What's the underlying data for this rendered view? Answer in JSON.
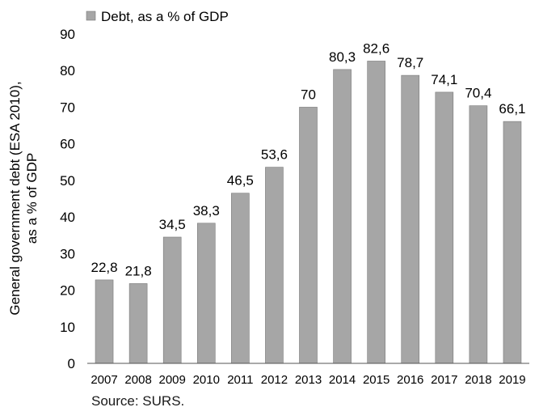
{
  "chart_data": {
    "type": "bar",
    "categories": [
      "2007",
      "2008",
      "2009",
      "2010",
      "2011",
      "2012",
      "2013",
      "2014",
      "2015",
      "2016",
      "2017",
      "2018",
      "2019"
    ],
    "values": [
      22.8,
      21.8,
      34.5,
      38.3,
      46.5,
      53.6,
      70,
      80.3,
      82.6,
      78.7,
      74.1,
      70.4,
      66.1
    ],
    "data_labels": [
      "22,8",
      "21,8",
      "34,5",
      "38,3",
      "46,5",
      "53,6",
      "70",
      "80,3",
      "82,6",
      "78,7",
      "74,1",
      "70,4",
      "66,1"
    ],
    "series": [
      {
        "name": "Debt, as a % of GDP"
      }
    ],
    "ylabel_lines": [
      "General government debt (ESA 2010),",
      "as a % of GDP"
    ],
    "ylim": [
      0,
      90
    ],
    "yticks": [
      0,
      10,
      20,
      30,
      40,
      50,
      60,
      70,
      80,
      90
    ],
    "grid": false,
    "legend_position": "top-left",
    "bar_color": "#a6a6a6"
  },
  "source": "Source: SURS."
}
